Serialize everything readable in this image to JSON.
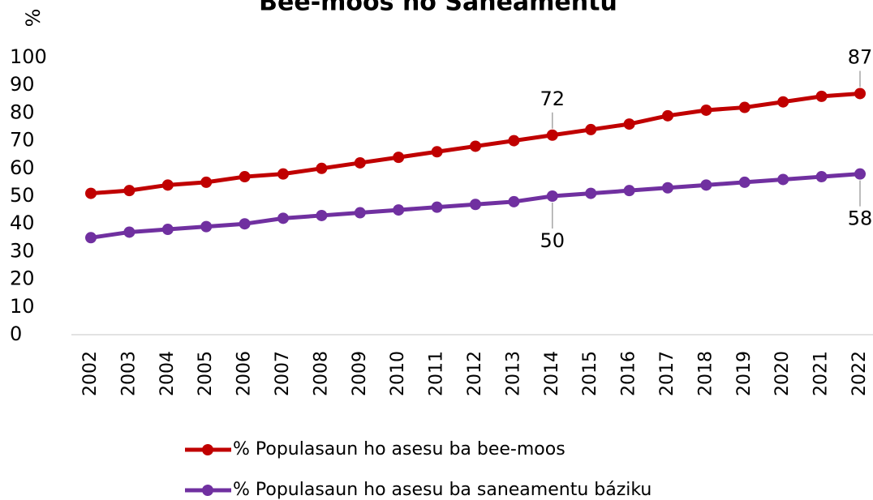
{
  "chart_data": {
    "type": "line",
    "title": "Bee-moos no Saneamentu",
    "y_label": "%",
    "categories": [
      "2002",
      "2003",
      "2004",
      "2005",
      "2006",
      "2007",
      "2008",
      "2009",
      "2010",
      "2011",
      "2012",
      "2013",
      "2014",
      "2015",
      "2016",
      "2017",
      "2018",
      "2019",
      "2020",
      "2021",
      "2022"
    ],
    "series": [
      {
        "name": "% Populasaun ho asesu ba bee-moos",
        "color": "#c00000",
        "values": [
          51,
          52,
          54,
          55,
          57,
          58,
          60,
          62,
          64,
          66,
          68,
          70,
          72,
          74,
          76,
          79,
          81,
          82,
          84,
          86,
          87
        ],
        "label_points": [
          12,
          20
        ]
      },
      {
        "name": "% Populasaun ho asesu ba saneamentu báziku",
        "color": "#7030a0",
        "values": [
          35,
          37,
          38,
          39,
          40,
          42,
          43,
          44,
          45,
          46,
          47,
          48,
          50,
          51,
          52,
          53,
          54,
          55,
          56,
          57,
          58
        ],
        "label_points": [
          12,
          20
        ]
      }
    ],
    "ylim": [
      0,
      100
    ],
    "yticks": [
      0,
      10,
      20,
      30,
      40,
      50,
      60,
      70,
      80,
      90,
      100
    ],
    "grid": false,
    "legend": "bottom"
  }
}
